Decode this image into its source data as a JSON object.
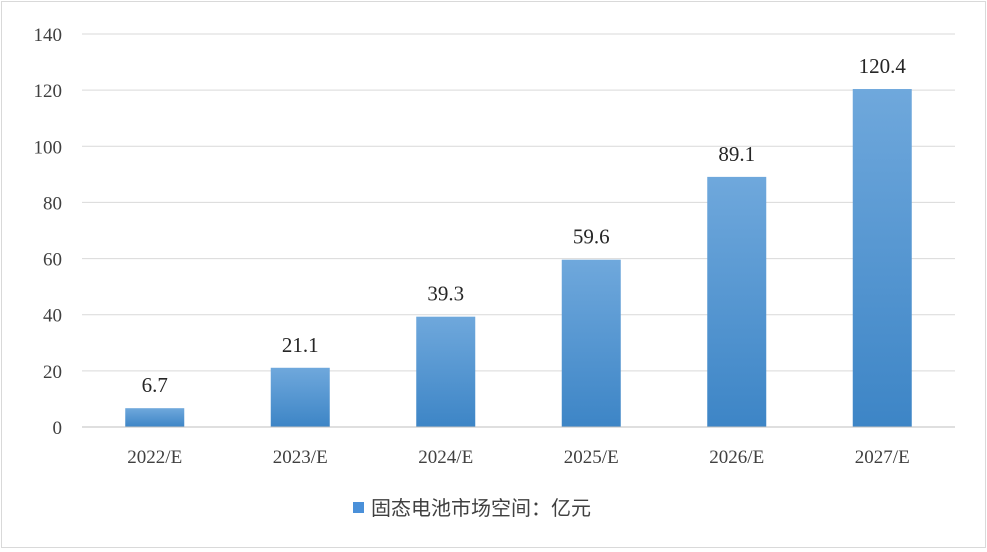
{
  "chart_data": {
    "type": "bar",
    "categories": [
      "2022/E",
      "2023/E",
      "2024/E",
      "2025/E",
      "2026/E",
      "2027/E"
    ],
    "series": [
      {
        "name": "固态电池市场空间：亿元",
        "values": [
          6.7,
          21.1,
          39.3,
          59.6,
          89.1,
          120.4
        ]
      }
    ],
    "ylim": [
      0,
      140
    ],
    "yticks": [
      "0",
      "20",
      "40",
      "60",
      "80",
      "100",
      "120",
      "140"
    ],
    "grid": true,
    "legend_position": "bottom",
    "data_labels": [
      "6.7",
      "21.1",
      "39.3",
      "59.6",
      "89.1",
      "120.4"
    ],
    "bar_color_top": "#6fa8dc",
    "bar_color_bottom": "#3d85c6",
    "grid_color": "#d9d9d9"
  }
}
